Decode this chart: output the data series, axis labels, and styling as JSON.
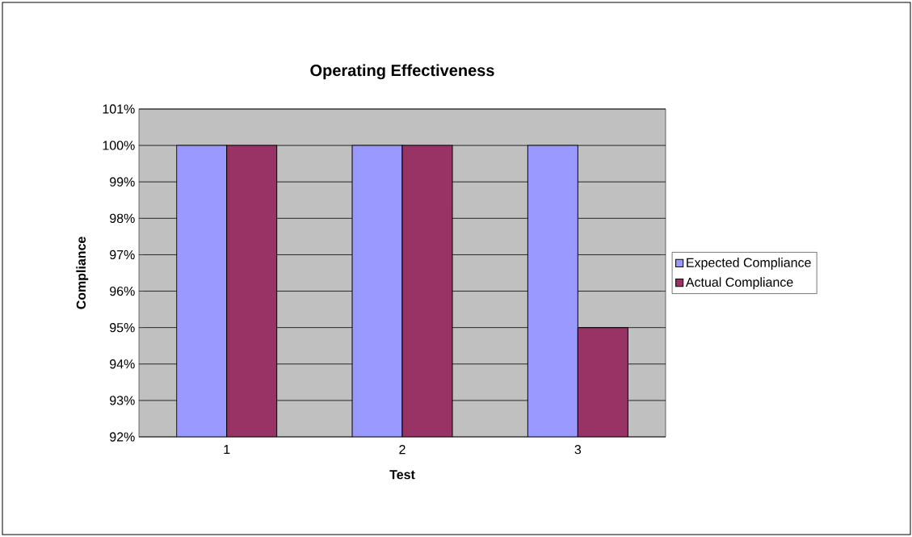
{
  "chart_data": {
    "type": "bar",
    "title": "Operating Effectiveness",
    "xlabel": "Test",
    "ylabel": "Compliance",
    "categories": [
      "1",
      "2",
      "3"
    ],
    "series": [
      {
        "name": "Expected Compliance",
        "color": "#9999ff",
        "values": [
          100,
          100,
          100
        ]
      },
      {
        "name": "Actual Compliance",
        "color": "#993366",
        "values": [
          100,
          100,
          95
        ]
      }
    ],
    "ylim": [
      92,
      101
    ],
    "yticks": [
      {
        "value": 92,
        "label": "92%"
      },
      {
        "value": 93,
        "label": "93%"
      },
      {
        "value": 94,
        "label": "94%"
      },
      {
        "value": 95,
        "label": "95%"
      },
      {
        "value": 96,
        "label": "96%"
      },
      {
        "value": 97,
        "label": "97%"
      },
      {
        "value": 98,
        "label": "98%"
      },
      {
        "value": 99,
        "label": "99%"
      },
      {
        "value": 100,
        "label": "100%"
      },
      {
        "value": 101,
        "label": "101%"
      }
    ],
    "grid": "y",
    "legend": "right"
  }
}
